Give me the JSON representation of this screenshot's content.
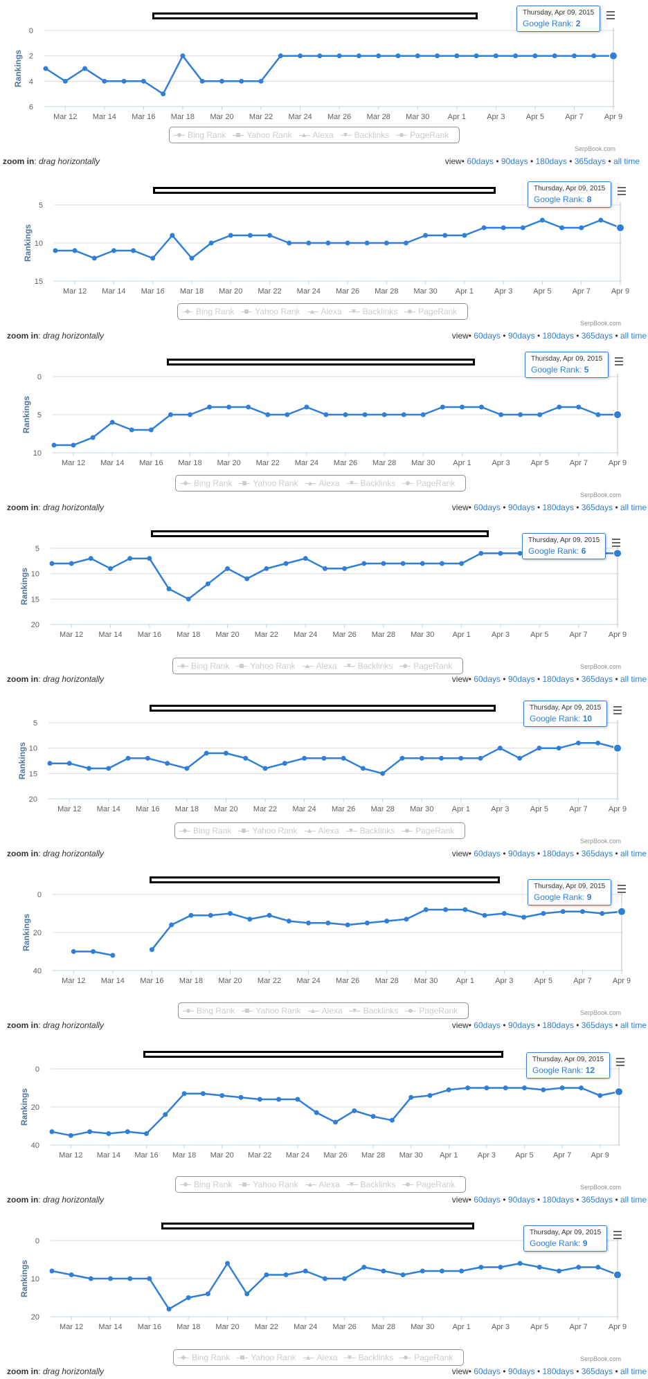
{
  "shared": {
    "y_axis_label": "Rankings",
    "x_tick_labels": [
      "Mar 12",
      "Mar 14",
      "Mar 16",
      "Mar 18",
      "Mar 20",
      "Mar 22",
      "Mar 24",
      "Mar 26",
      "Mar 28",
      "Mar 30",
      "Apr 1",
      "Apr 3",
      "Apr 5",
      "Apr 7",
      "Apr 9"
    ],
    "legend": [
      "Bing Rank",
      "Yahoo Rank",
      "Alexa",
      "Backlinks",
      "PageRank"
    ],
    "legend_symbols": [
      "diamond",
      "square",
      "triangle",
      "triangle-down",
      "circle"
    ],
    "credit": "SerpBook.com",
    "zoom_label": "zoom in",
    "zoom_hint": "drag horizontally",
    "view_label": "view",
    "view_links": [
      "60days",
      "90days",
      "180days",
      "365days",
      "all time"
    ],
    "tooltip_date": "Thursday, Apr 09, 2015",
    "tooltip_series": "Google Rank",
    "series_color": "#2f7ed8",
    "grid_color": "#d8d8d8",
    "legend_inactive_color": "#cccccc"
  },
  "chart_data": [
    {
      "type": "line",
      "series": [
        {
          "name": "Google Rank",
          "values": [
            3,
            4,
            3,
            4,
            4,
            4,
            5,
            2,
            4,
            4,
            4,
            4,
            2,
            2,
            2,
            2,
            2,
            2,
            2,
            2,
            2,
            2,
            2,
            2,
            2,
            2,
            2,
            2,
            2,
            2
          ]
        }
      ],
      "y_ticks": [
        0,
        2,
        4,
        6
      ],
      "ylim": [
        0,
        6
      ],
      "y_inverted": true,
      "tooltip_value": "2"
    },
    {
      "type": "line",
      "series": [
        {
          "name": "Google Rank",
          "values": [
            11,
            11,
            12,
            11,
            11,
            12,
            9,
            12,
            10,
            9,
            9,
            9,
            10,
            10,
            10,
            10,
            10,
            10,
            10,
            9,
            9,
            9,
            8,
            8,
            8,
            7,
            8,
            8,
            7,
            8
          ]
        }
      ],
      "y_ticks": [
        5,
        10,
        15
      ],
      "ylim": [
        5,
        15
      ],
      "y_inverted": true,
      "tooltip_value": "8"
    },
    {
      "type": "line",
      "series": [
        {
          "name": "Google Rank",
          "values": [
            9,
            9,
            8,
            6,
            7,
            7,
            5,
            5,
            4,
            4,
            4,
            5,
            5,
            4,
            5,
            5,
            5,
            5,
            5,
            5,
            4,
            4,
            4,
            5,
            5,
            5,
            4,
            4,
            5,
            5
          ]
        }
      ],
      "y_ticks": [
        0,
        5,
        10
      ],
      "ylim": [
        0,
        10
      ],
      "y_inverted": true,
      "tooltip_value": "5"
    },
    {
      "type": "line",
      "series": [
        {
          "name": "Google Rank",
          "values": [
            8,
            8,
            7,
            9,
            7,
            7,
            13,
            15,
            12,
            9,
            11,
            9,
            8,
            7,
            9,
            9,
            8,
            8,
            8,
            8,
            8,
            8,
            6,
            6,
            6,
            6,
            6,
            6,
            6,
            6
          ]
        }
      ],
      "y_ticks": [
        5,
        10,
        15,
        20
      ],
      "ylim": [
        5,
        20
      ],
      "y_inverted": true,
      "tooltip_value": "6"
    },
    {
      "type": "line",
      "series": [
        {
          "name": "Google Rank",
          "values": [
            13,
            13,
            14,
            14,
            12,
            12,
            13,
            14,
            11,
            11,
            12,
            14,
            13,
            12,
            12,
            12,
            14,
            15,
            12,
            12,
            12,
            12,
            12,
            10,
            12,
            10,
            10,
            9,
            9,
            10
          ]
        }
      ],
      "y_ticks": [
        5,
        10,
        15,
        20
      ],
      "ylim": [
        5,
        20
      ],
      "y_inverted": true,
      "tooltip_value": "10"
    },
    {
      "type": "line",
      "series": [
        {
          "name": "Google Rank",
          "values": [
            null,
            30,
            30,
            32,
            null,
            29,
            16,
            11,
            11,
            10,
            13,
            11,
            14,
            15,
            15,
            16,
            15,
            14,
            13,
            8,
            8,
            8,
            11,
            10,
            12,
            10,
            9,
            9,
            10,
            9
          ]
        }
      ],
      "y_ticks": [
        0,
        20,
        40
      ],
      "ylim": [
        0,
        40
      ],
      "y_inverted": true,
      "tooltip_value": "9"
    },
    {
      "type": "line",
      "series": [
        {
          "name": "Google Rank",
          "values": [
            33,
            35,
            33,
            34,
            33,
            34,
            24,
            13,
            13,
            14,
            15,
            16,
            16,
            16,
            23,
            28,
            22,
            25,
            27,
            15,
            14,
            11,
            10,
            10,
            10,
            10,
            11,
            10,
            10,
            14,
            12
          ]
        }
      ],
      "y_ticks": [
        0,
        20,
        40
      ],
      "ylim": [
        0,
        40
      ],
      "y_inverted": true,
      "tooltip_value": "12"
    },
    {
      "type": "line",
      "series": [
        {
          "name": "Google Rank",
          "values": [
            8,
            9,
            10,
            10,
            10,
            10,
            18,
            15,
            14,
            6,
            14,
            9,
            9,
            8,
            10,
            10,
            7,
            8,
            9,
            8,
            8,
            8,
            7,
            7,
            6,
            7,
            8,
            7,
            7,
            9
          ]
        }
      ],
      "y_ticks": [
        0,
        10,
        20
      ],
      "ylim": [
        0,
        20
      ],
      "y_inverted": true,
      "tooltip_value": "9"
    }
  ]
}
